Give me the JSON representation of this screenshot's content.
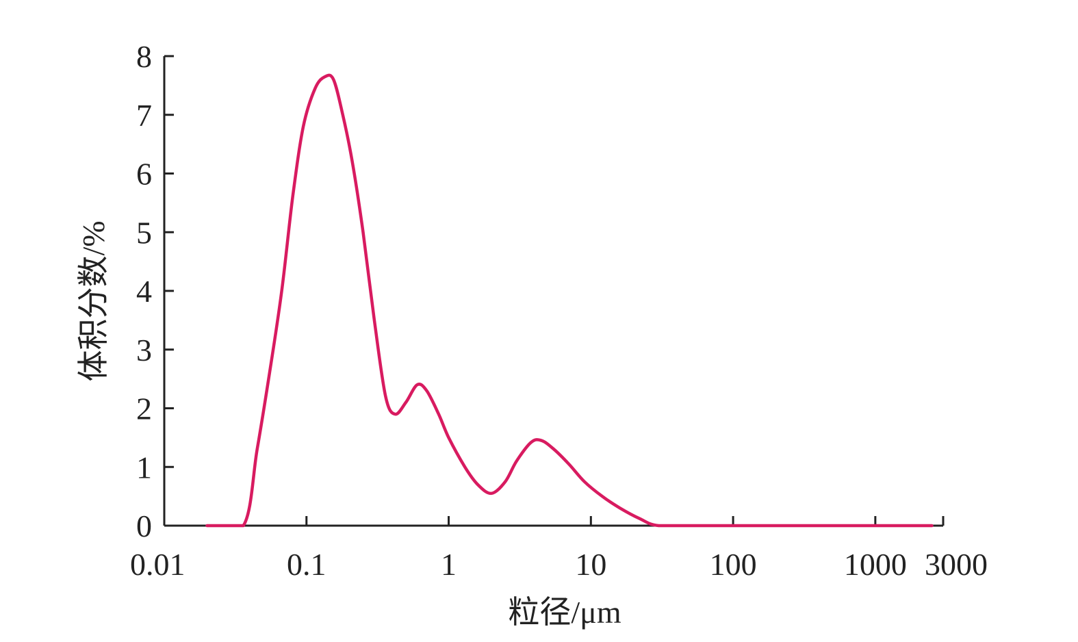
{
  "chart_data": {
    "type": "line",
    "xscale": "log",
    "xlim": [
      0.01,
      3000
    ],
    "ylim": [
      0,
      8
    ],
    "xlabel": "粒径/μm",
    "ylabel": "体积分数/%",
    "x_ticks": [
      {
        "value": 0.01,
        "label": "0.01"
      },
      {
        "value": 0.1,
        "label": "0.1"
      },
      {
        "value": 1,
        "label": "1"
      },
      {
        "value": 10,
        "label": "10"
      },
      {
        "value": 100,
        "label": "100"
      },
      {
        "value": 1000,
        "label": "1000"
      },
      {
        "value": 3000,
        "label": "3000"
      }
    ],
    "y_ticks": [
      {
        "value": 0,
        "label": "0"
      },
      {
        "value": 1,
        "label": "1"
      },
      {
        "value": 2,
        "label": "2"
      },
      {
        "value": 3,
        "label": "3"
      },
      {
        "value": 4,
        "label": "4"
      },
      {
        "value": 5,
        "label": "5"
      },
      {
        "value": 6,
        "label": "6"
      },
      {
        "value": 7,
        "label": "7"
      },
      {
        "value": 8,
        "label": "8"
      }
    ],
    "grid": false,
    "line_color": "#d81b60",
    "series": [
      {
        "x": [
          0.02,
          0.036,
          0.045,
          0.055,
          0.067,
          0.08,
          0.095,
          0.115,
          0.135,
          0.155,
          0.18,
          0.21,
          0.25,
          0.3,
          0.36,
          0.42,
          0.5,
          0.6,
          0.7,
          0.85,
          1.0,
          1.3,
          1.6,
          2.0,
          2.5,
          3.0,
          3.8,
          4.5,
          5.5,
          7.0,
          9.0,
          12.0,
          16.0,
          22.0,
          30.0,
          60.0,
          200.0,
          1000.0,
          2500.0
        ],
        "y": [
          0,
          0,
          1.3,
          2.6,
          4.0,
          5.6,
          6.8,
          7.45,
          7.65,
          7.6,
          7.0,
          6.2,
          5.0,
          3.5,
          2.2,
          1.9,
          2.1,
          2.4,
          2.3,
          1.9,
          1.5,
          1.0,
          0.7,
          0.55,
          0.75,
          1.1,
          1.42,
          1.45,
          1.3,
          1.05,
          0.75,
          0.5,
          0.3,
          0.12,
          0,
          0,
          0,
          0,
          0
        ]
      }
    ]
  }
}
